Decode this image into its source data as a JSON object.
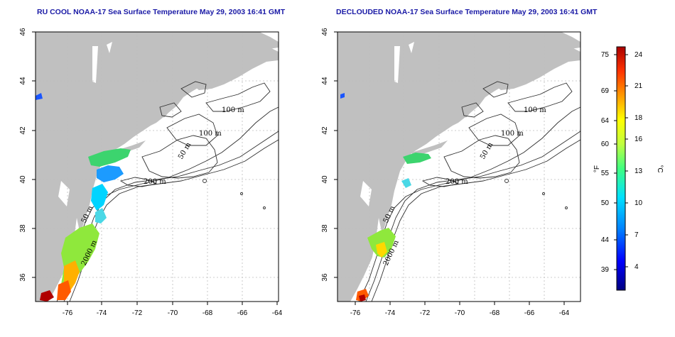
{
  "panels": [
    {
      "id": "left",
      "title": "RU COOL NOAA-17 Sea Surface Temperature May 29, 2003 16:41 GMT",
      "contour_labels": [
        "100 m",
        "100 m",
        "50 m",
        "200 m",
        "50 m",
        "2000 m"
      ]
    },
    {
      "id": "right",
      "title": "DECLOUDED NOAA-17 Sea Surface Temperature May 29, 2003 16:41 GMT",
      "contour_labels": [
        "100 m",
        "100 m",
        "50 m",
        "200 m",
        "50 m",
        "2000 m"
      ]
    }
  ],
  "axes": {
    "lon_ticks": [
      "-76",
      "-74",
      "-72",
      "-70",
      "-68",
      "-66",
      "-64"
    ],
    "lat_ticks": [
      "46",
      "44",
      "42",
      "40",
      "38",
      "36"
    ],
    "lon_range": [
      -77.2,
      -62.9
    ],
    "lat_range": [
      35.0,
      46.0
    ]
  },
  "colorbar": {
    "fahrenheit_label": "°F",
    "celsius_label": "°C",
    "fahrenheit_ticks": [
      "75",
      "69",
      "64",
      "60",
      "55",
      "50",
      "44",
      "39"
    ],
    "celsius_ticks": [
      "24",
      "21",
      "18",
      "16",
      "13",
      "10",
      "7",
      "4"
    ],
    "colors": [
      "#000080",
      "#0000ff",
      "#0080ff",
      "#00e0ff",
      "#40ff80",
      "#c0ff40",
      "#ffff00",
      "#ff9900",
      "#ff3300",
      "#aa0000"
    ]
  },
  "colors": {
    "land": "#c0c0c0",
    "title": "#1a1aa6",
    "gridline": "#bdbdbd"
  }
}
